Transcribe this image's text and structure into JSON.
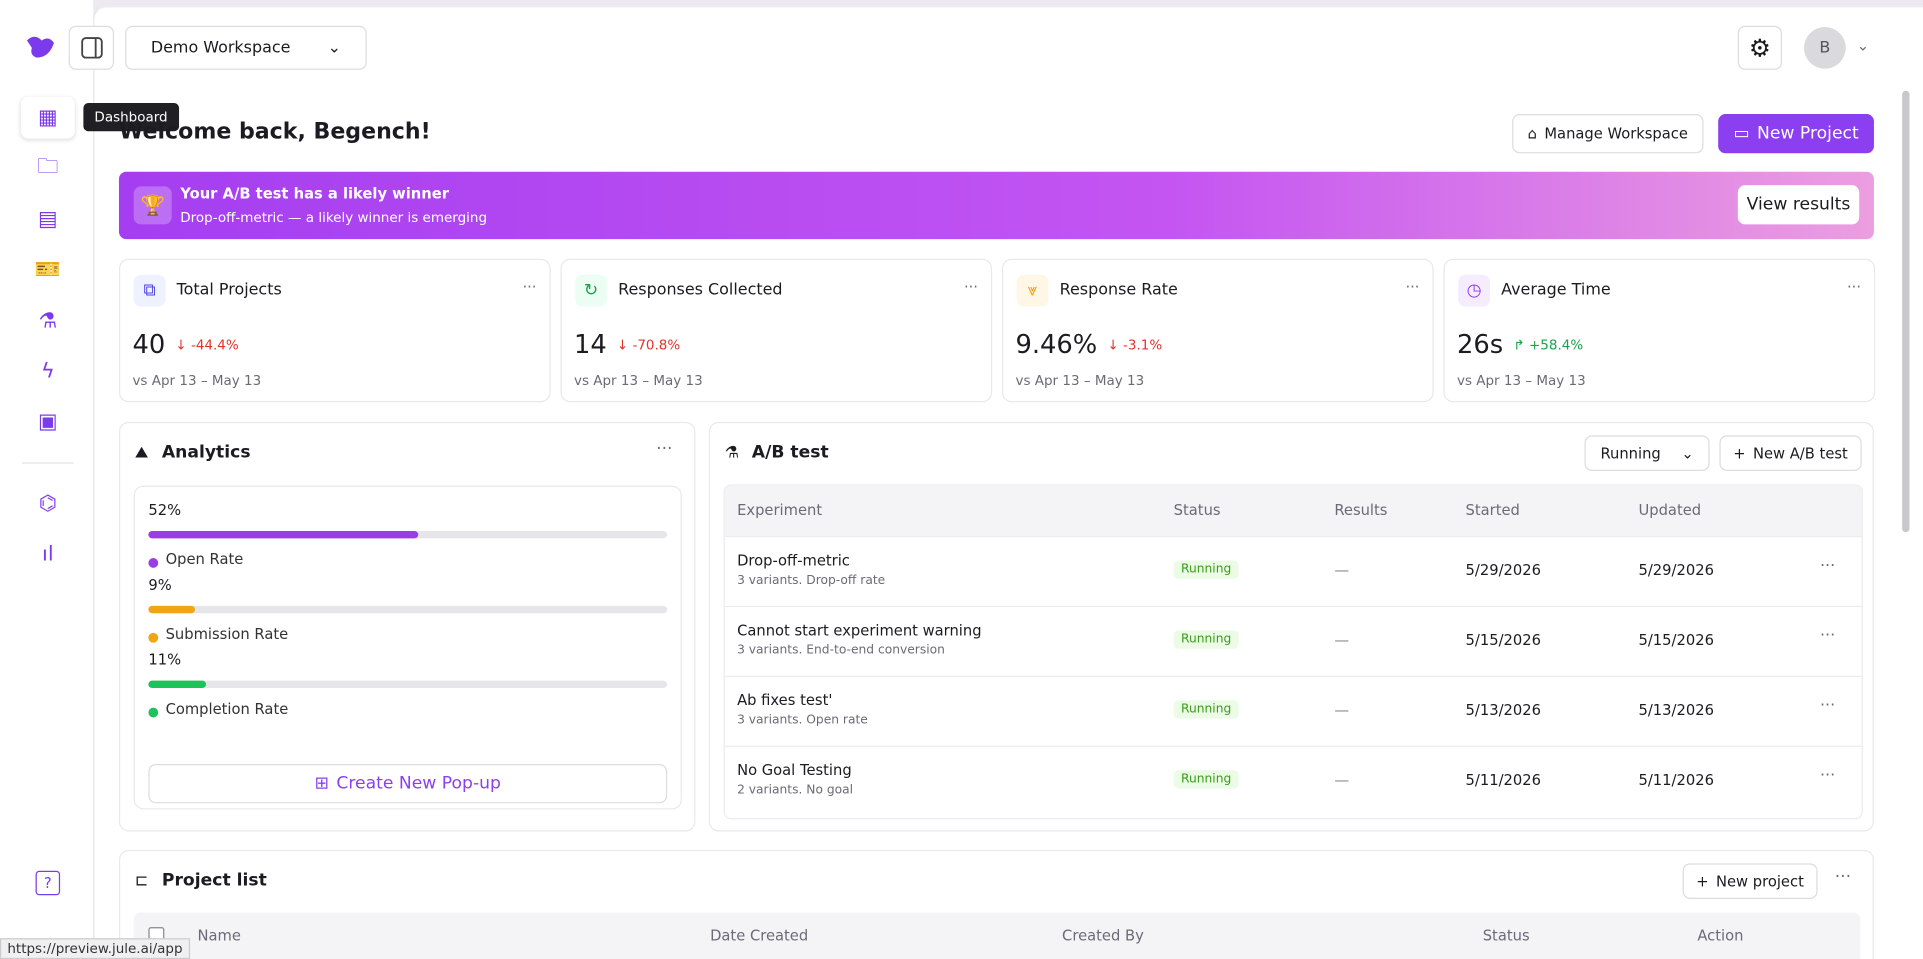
{
  "sidebar": {
    "tooltip": "Dashboard"
  },
  "header": {
    "workspace": "Demo Workspace",
    "avatar": "B"
  },
  "welcome": {
    "greeting": "Welcome back, Begench!",
    "manage_button": "Manage Workspace",
    "new_project_button": "New Project"
  },
  "banner": {
    "title": "Your A/B test has a likely winner",
    "subtitle": "Drop-off-metric — a likely winner is emerging",
    "button": "View results"
  },
  "stats": [
    {
      "label": "Total Projects",
      "value": "40",
      "change": "-44.4%",
      "trend": "down",
      "period": "vs Apr 13 – May 13"
    },
    {
      "label": "Responses Collected",
      "value": "14",
      "change": "-70.8%",
      "trend": "down",
      "period": "vs Apr 13 – May 13"
    },
    {
      "label": "Response Rate",
      "value": "9.46%",
      "change": "-3.1%",
      "trend": "down",
      "period": "vs Apr 13 – May 13"
    },
    {
      "label": "Average Time",
      "value": "26s",
      "change": "+58.4%",
      "trend": "up",
      "period": "vs Apr 13 – May 13"
    }
  ],
  "analytics": {
    "title": "Analytics",
    "metrics": [
      {
        "label": "Open Rate",
        "value": 52,
        "value_label": "52%",
        "color": "#9b3de6"
      },
      {
        "label": "Submission Rate",
        "value": 9,
        "value_label": "9%",
        "color": "#f0a514"
      },
      {
        "label": "Completion Rate",
        "value": 11,
        "value_label": "11%",
        "color": "#1fc15a"
      }
    ],
    "button": "Create New Pop-up"
  },
  "ab_test": {
    "title": "A/B test",
    "filter": "Running",
    "button": "New A/B test",
    "columns": [
      "Experiment",
      "Status",
      "Results",
      "Started",
      "Updated"
    ],
    "rows": [
      {
        "name": "Drop-off-metric",
        "description": "3 variants. Drop-off rate",
        "status": "Running",
        "results": "—",
        "started": "5/29/2026",
        "updated": "5/29/2026"
      },
      {
        "name": "Cannot start experiment warning",
        "description": "3 variants. End-to-end conversion",
        "status": "Running",
        "results": "—",
        "started": "5/15/2026",
        "updated": "5/15/2026"
      },
      {
        "name": "Ab fixes test'",
        "description": "3 variants. Open rate",
        "status": "Running",
        "results": "—",
        "started": "5/13/2026",
        "updated": "5/13/2026"
      },
      {
        "name": "No Goal Testing",
        "description": "2 variants. No goal",
        "status": "Running",
        "results": "—",
        "started": "5/11/2026",
        "updated": "5/11/2026"
      }
    ]
  },
  "project_list": {
    "title": "Project list",
    "button": "New project",
    "columns": [
      "Name",
      "Date Created",
      "Created By",
      "Status",
      "Action"
    ]
  },
  "status_bar": {
    "url": "https://preview.jule.ai/app"
  }
}
